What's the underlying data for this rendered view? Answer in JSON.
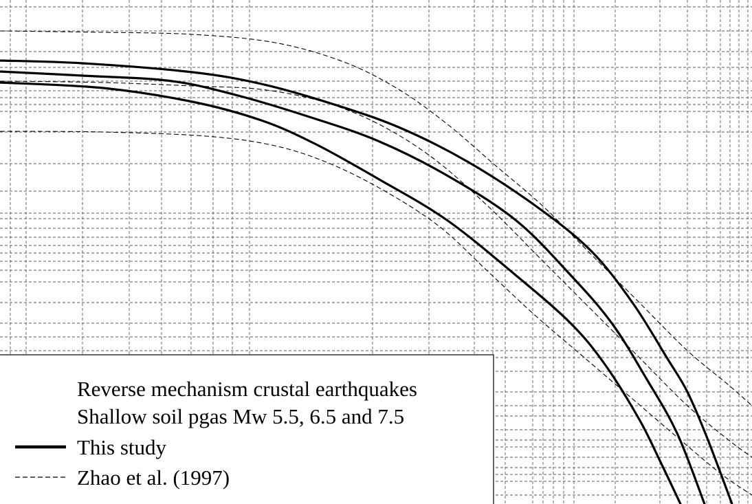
{
  "chart_data": {
    "type": "line",
    "title": "",
    "xlabel": "",
    "ylabel": "",
    "grid": true,
    "legend_placement": "bottom-left",
    "annotations": [
      "Reverse mechanism crustal earthquakes",
      "Shallow soil pgas Mw 5.5, 6.5 and 7.5"
    ],
    "legend": [
      {
        "label": "This study",
        "style": "solid-thick"
      },
      {
        "label": "Zhao et al. (1997)",
        "style": "dashed-thin"
      }
    ],
    "series": [
      {
        "group": "This study",
        "style": "solid",
        "magnitude": "Mw 7.5",
        "points": [
          [
            0,
            88
          ],
          [
            120,
            92
          ],
          [
            280,
            105
          ],
          [
            380,
            122
          ],
          [
            480,
            150
          ],
          [
            580,
            185
          ],
          [
            680,
            235
          ],
          [
            780,
            300
          ],
          [
            860,
            365
          ],
          [
            920,
            440
          ],
          [
            970,
            520
          ],
          [
            1000,
            570
          ],
          [
            1030,
            640
          ],
          [
            1065,
            733
          ]
        ]
      },
      {
        "group": "This study",
        "style": "solid",
        "magnitude": "Mw 6.5",
        "points": [
          [
            0,
            104
          ],
          [
            120,
            110
          ],
          [
            250,
            118
          ],
          [
            350,
            140
          ],
          [
            450,
            170
          ],
          [
            550,
            205
          ],
          [
            650,
            255
          ],
          [
            750,
            320
          ],
          [
            830,
            400
          ],
          [
            890,
            470
          ],
          [
            940,
            550
          ],
          [
            985,
            630
          ],
          [
            1025,
            733
          ]
        ]
      },
      {
        "group": "This study",
        "style": "solid",
        "magnitude": "Mw 5.5",
        "points": [
          [
            0,
            120
          ],
          [
            150,
            128
          ],
          [
            280,
            148
          ],
          [
            380,
            175
          ],
          [
            460,
            210
          ],
          [
            550,
            260
          ],
          [
            650,
            320
          ],
          [
            750,
            400
          ],
          [
            830,
            470
          ],
          [
            880,
            530
          ],
          [
            930,
            610
          ],
          [
            960,
            670
          ],
          [
            990,
            733
          ]
        ]
      },
      {
        "group": "Zhao et al. (1997)",
        "style": "dashed",
        "magnitude": "Mw 7.5",
        "points": [
          [
            0,
            45
          ],
          [
            150,
            47
          ],
          [
            280,
            50
          ],
          [
            400,
            62
          ],
          [
            500,
            90
          ],
          [
            580,
            130
          ],
          [
            650,
            180
          ],
          [
            720,
            240
          ],
          [
            790,
            300
          ],
          [
            860,
            370
          ],
          [
            930,
            440
          ],
          [
            1000,
            510
          ],
          [
            1060,
            560
          ],
          [
            1094,
            590
          ]
        ]
      },
      {
        "group": "Zhao et al. (1997)",
        "style": "dashed",
        "magnitude": "Mw 6.5",
        "points": [
          [
            0,
            118
          ],
          [
            150,
            120
          ],
          [
            280,
            125
          ],
          [
            380,
            130
          ],
          [
            470,
            148
          ],
          [
            550,
            180
          ],
          [
            630,
            230
          ],
          [
            710,
            300
          ],
          [
            790,
            380
          ],
          [
            860,
            450
          ],
          [
            930,
            520
          ],
          [
            1000,
            590
          ],
          [
            1060,
            640
          ],
          [
            1094,
            665
          ]
        ]
      },
      {
        "group": "Zhao et al. (1997)",
        "style": "dashed",
        "magnitude": "Mw 5.5",
        "points": [
          [
            0,
            191
          ],
          [
            150,
            192
          ],
          [
            300,
            198
          ],
          [
            400,
            212
          ],
          [
            480,
            238
          ],
          [
            560,
            278
          ],
          [
            640,
            330
          ],
          [
            710,
            395
          ],
          [
            780,
            460
          ],
          [
            850,
            520
          ],
          [
            920,
            580
          ],
          [
            990,
            640
          ],
          [
            1050,
            690
          ],
          [
            1094,
            720
          ]
        ]
      }
    ]
  }
}
